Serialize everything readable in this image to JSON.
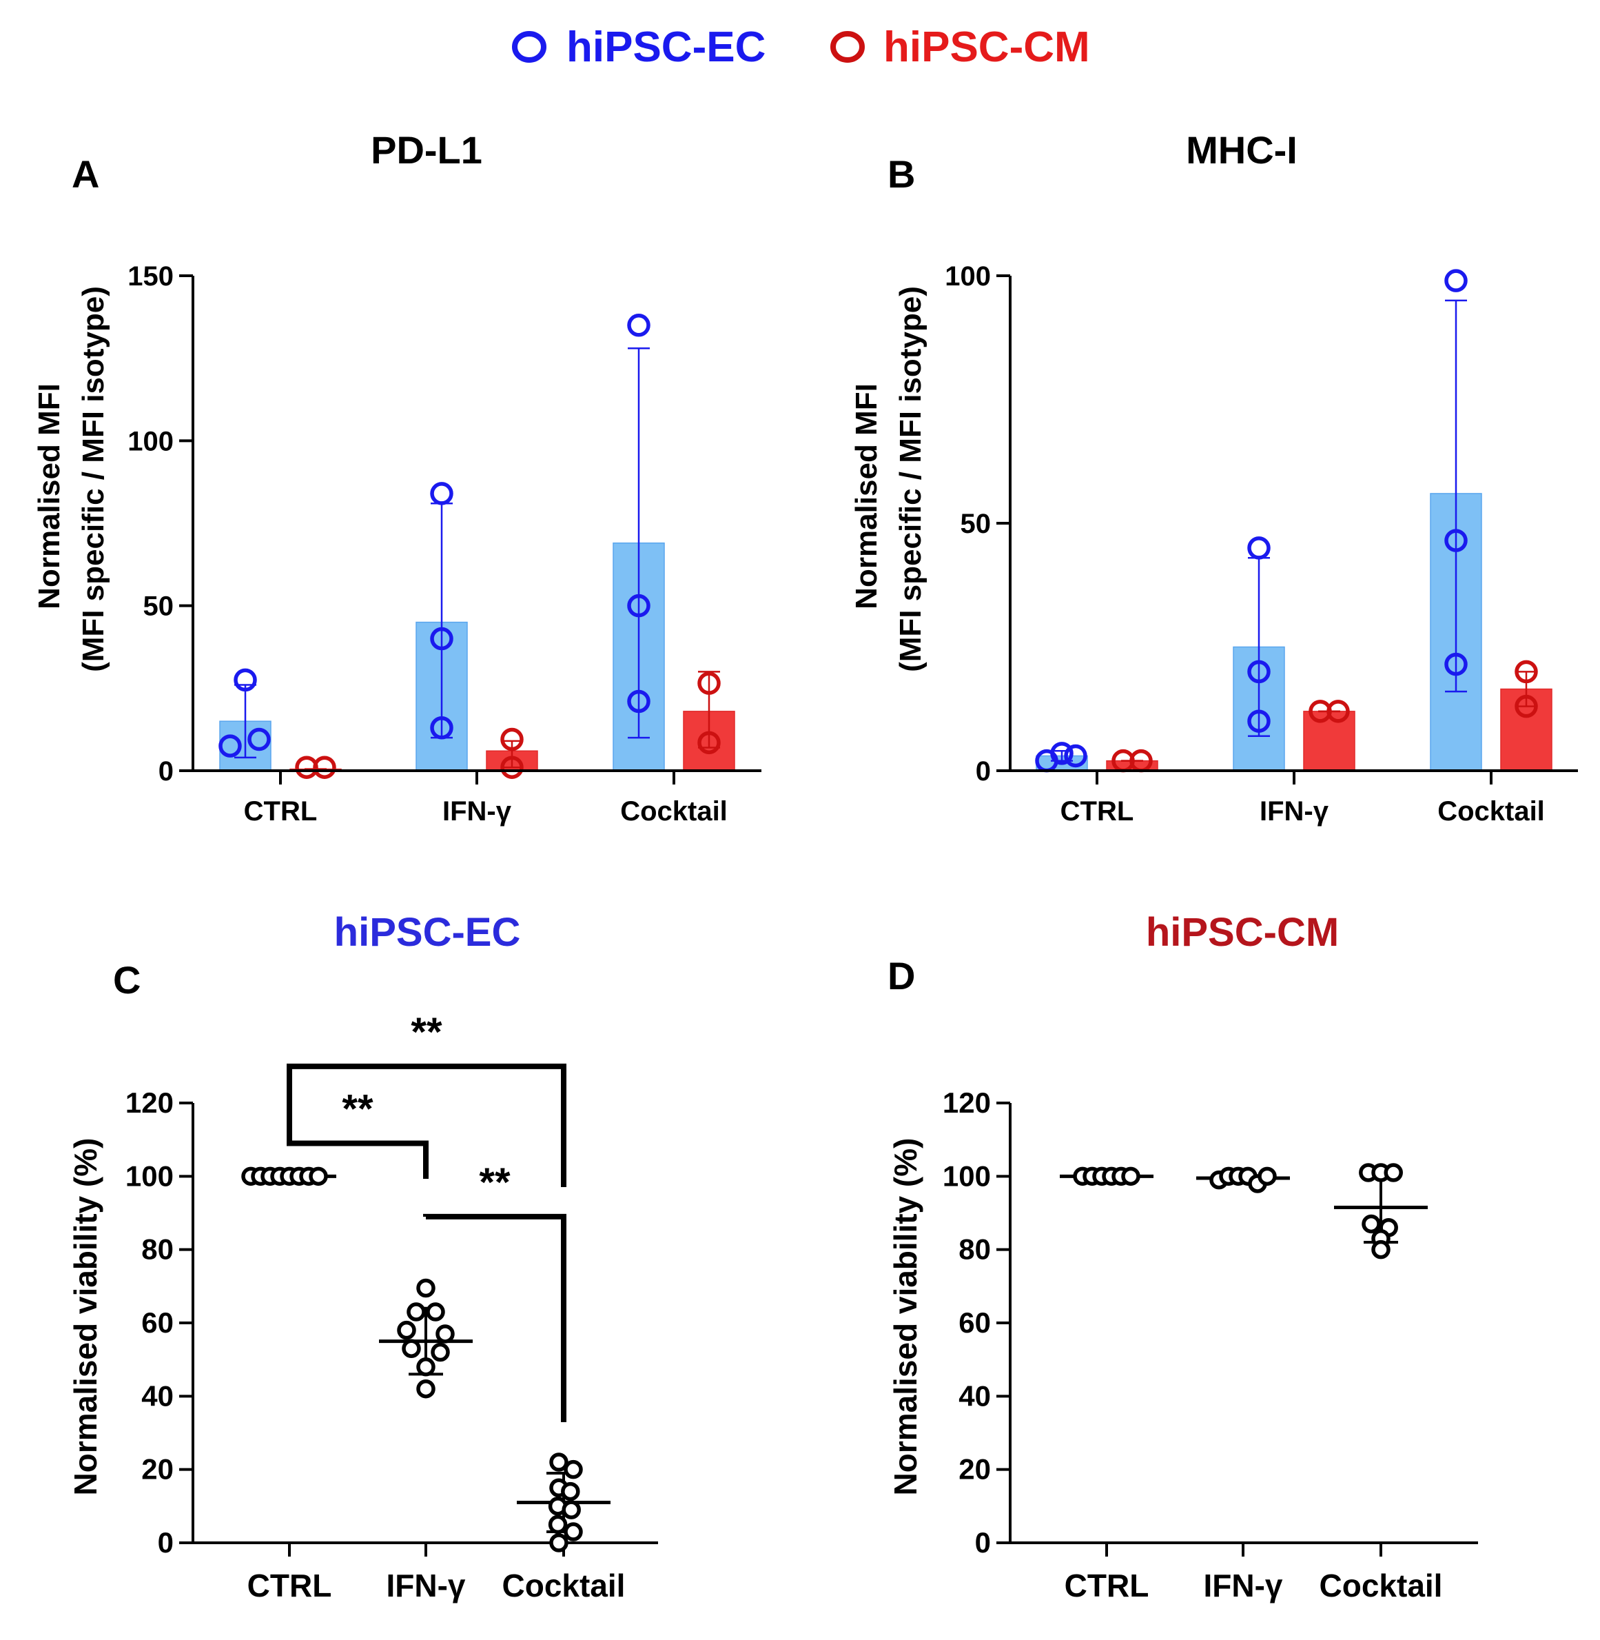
{
  "legend": [
    {
      "label": "hiPSC-EC",
      "color": "#1a1aee"
    },
    {
      "label": "hiPSC-CM",
      "color": "#cc1111"
    }
  ],
  "colors": {
    "ec_marker": "#1a1aee",
    "ec_bar": "#7ec0f5",
    "cm_marker": "#cc1111",
    "cm_bar": "#f03a3a",
    "black": "#000000"
  },
  "chart_data": [
    {
      "panel": "A",
      "type": "bar",
      "title": "PD-L1",
      "ylabel": "Normalised MFI",
      "ylabel2": "(MFI specific / MFI isotype)",
      "xlabel": "",
      "ylim": [
        0,
        150
      ],
      "yticks": [
        0,
        50,
        100,
        150
      ],
      "ytick_labels": [
        "0",
        "50",
        "100",
        "150"
      ],
      "categories": [
        "CTRL",
        "IFN-γ",
        "Cocktail"
      ],
      "series": [
        {
          "name": "hiPSC-EC",
          "color_key": "ec",
          "values": [
            15,
            45,
            69
          ],
          "err_low": [
            4,
            10,
            10
          ],
          "err_high": [
            26,
            81,
            128
          ],
          "points": [
            [
              7.5,
              9.5,
              27.5
            ],
            [
              13,
              40,
              84
            ],
            [
              21,
              50,
              135
            ]
          ]
        },
        {
          "name": "hiPSC-CM",
          "color_key": "cm",
          "values": [
            0.5,
            6,
            18
          ],
          "err_low": [
            0.5,
            1,
            7
          ],
          "err_high": [
            0.5,
            9,
            30
          ],
          "points": [
            [
              1,
              1
            ],
            [
              1,
              9.5
            ],
            [
              8.5,
              26.5
            ]
          ]
        }
      ]
    },
    {
      "panel": "B",
      "type": "bar",
      "title": "MHC-I",
      "ylabel": "Normalised MFI",
      "ylabel2": "(MFI specific / MFI isotype)",
      "xlabel": "",
      "ylim": [
        0,
        100
      ],
      "yticks": [
        0,
        50,
        100
      ],
      "ytick_labels": [
        "0",
        "50",
        "100"
      ],
      "categories": [
        "CTRL",
        "IFN-γ",
        "Cocktail"
      ],
      "series": [
        {
          "name": "hiPSC-EC",
          "color_key": "ec",
          "values": [
            3,
            25,
            56
          ],
          "err_low": [
            2,
            7,
            16
          ],
          "err_high": [
            4,
            43,
            95
          ],
          "points": [
            [
              2,
              3,
              3.5
            ],
            [
              10,
              20,
              45
            ],
            [
              21.5,
              46.5,
              99
            ]
          ]
        },
        {
          "name": "hiPSC-CM",
          "color_key": "cm",
          "values": [
            2,
            12,
            16.5
          ],
          "err_low": [
            2,
            12,
            13
          ],
          "err_high": [
            2,
            12,
            20
          ],
          "points": [
            [
              2,
              2
            ],
            [
              12,
              12
            ],
            [
              13,
              20
            ]
          ]
        }
      ]
    },
    {
      "panel": "C",
      "type": "scatter",
      "title": "hiPSC-EC",
      "title_color_key": "ec_marker",
      "ylabel": "Normalised viability (%)",
      "xlabel": "",
      "ylim": [
        0,
        120
      ],
      "yticks": [
        0,
        20,
        40,
        60,
        80,
        100,
        120
      ],
      "ytick_labels": [
        "0",
        "20",
        "40",
        "60",
        "80",
        "100",
        "120"
      ],
      "categories": [
        "CTRL",
        "IFN-γ",
        "Cocktail"
      ],
      "groups": [
        {
          "points": [
            100,
            100,
            100,
            100,
            100,
            100,
            100,
            100
          ],
          "offsets": [
            -4,
            -3,
            -2,
            -1,
            0,
            1,
            2,
            3
          ],
          "mean": 100,
          "sd_low": 100,
          "sd_high": 100
        },
        {
          "points": [
            69.5,
            63,
            63,
            58,
            57,
            53,
            52,
            48,
            42
          ],
          "offsets": [
            0,
            -1,
            1,
            -2,
            2,
            -1.5,
            1.5,
            0,
            0
          ],
          "mean": 55,
          "sd_low": 46,
          "sd_high": 64
        },
        {
          "points": [
            22,
            20,
            15,
            14,
            10,
            9,
            5,
            3,
            0
          ],
          "offsets": [
            -0.5,
            1,
            -0.5,
            0.7,
            -0.6,
            0.8,
            -0.6,
            1,
            -0.5
          ],
          "mean": 11,
          "sd_low": 3,
          "sd_high": 19
        }
      ],
      "brackets": [
        {
          "from": 0,
          "to": 1,
          "y_data": 109,
          "label": "**"
        },
        {
          "from": 0,
          "to": 2,
          "y_data": 130,
          "label": "**"
        },
        {
          "from": 1,
          "to": 2,
          "y_data": 89,
          "label": "**"
        }
      ]
    },
    {
      "panel": "D",
      "type": "scatter",
      "title": "hiPSC-CM",
      "title_color_key": "cm_marker",
      "ylabel": "Normalised viability (%)",
      "xlabel": "",
      "ylim": [
        0,
        120
      ],
      "yticks": [
        0,
        20,
        40,
        60,
        80,
        100,
        120
      ],
      "ytick_labels": [
        "0",
        "20",
        "40",
        "60",
        "80",
        "100",
        "120"
      ],
      "categories": [
        "CTRL",
        "IFN-γ",
        "Cocktail"
      ],
      "groups": [
        {
          "points": [
            100,
            100,
            100,
            100,
            100,
            100
          ],
          "offsets": [
            -2.5,
            -1.5,
            -0.5,
            0.5,
            1.5,
            2.5
          ],
          "mean": 100,
          "sd_low": 100,
          "sd_high": 100
        },
        {
          "points": [
            99,
            100,
            100,
            100,
            98,
            100
          ],
          "offsets": [
            -2.5,
            -1.5,
            -0.5,
            0.5,
            1.5,
            2.5
          ],
          "mean": 99.5,
          "sd_low": 98.5,
          "sd_high": 100
        },
        {
          "points": [
            101,
            101,
            101,
            87,
            86,
            83,
            80
          ],
          "offsets": [
            -1.3,
            0,
            1.3,
            -1,
            0.8,
            0,
            0
          ],
          "mean": 91.5,
          "sd_low": 82,
          "sd_high": 101
        }
      ],
      "brackets": []
    }
  ],
  "panel_labels": [
    "A",
    "B",
    "C",
    "D"
  ]
}
